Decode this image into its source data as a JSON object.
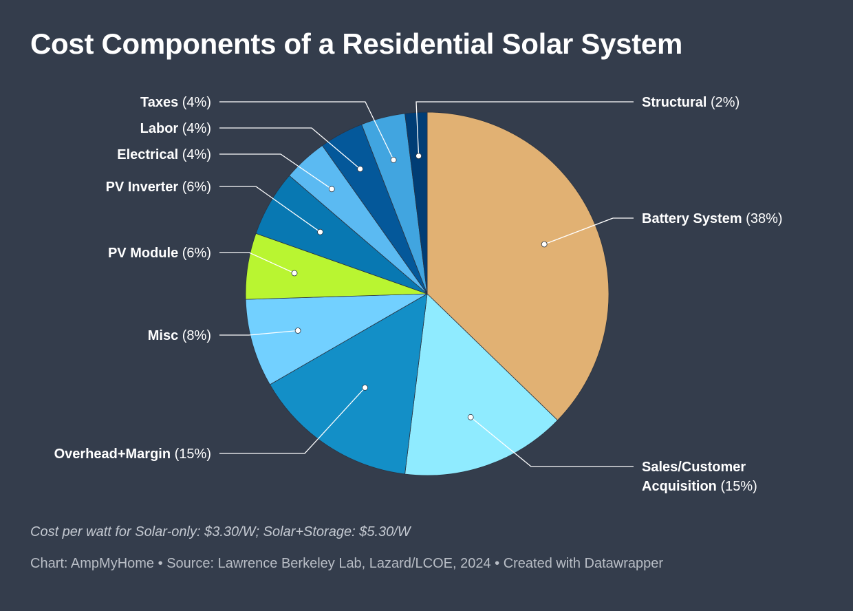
{
  "title": "Cost Components of a Residential Solar System",
  "note": "Cost per watt for Solar-only: $3.30/W; Solar+Storage: $5.30/W",
  "footer": {
    "chart": "Chart: AmpMyHome",
    "sep1": " • ",
    "source": "Source: Lawrence Berkeley Lab, Lazard/LCOE, 2024",
    "sep2": " • ",
    "created": "Created with Datawrapper"
  },
  "chart_data": {
    "type": "pie",
    "categories": [
      "Battery System",
      "Sales/Customer Acquisition",
      "Overhead+Margin",
      "Misc",
      "PV Module",
      "PV Inverter",
      "Electrical",
      "Labor",
      "Taxes",
      "Structural"
    ],
    "label_lines": [
      [
        "Battery System"
      ],
      [
        "Sales/Customer",
        "Acquisition"
      ],
      [
        "Overhead+Margin"
      ],
      [
        "Misc"
      ],
      [
        "PV Module"
      ],
      [
        "PV Inverter"
      ],
      [
        "Electrical"
      ],
      [
        "Labor"
      ],
      [
        "Taxes"
      ],
      [
        "Structural"
      ]
    ],
    "value_labels": [
      "(38%)",
      "(15%)",
      "(15%)",
      "(8%)",
      "(6%)",
      "(6%)",
      "(4%)",
      "(4%)",
      "(4%)",
      "(2%)"
    ],
    "values": [
      38,
      15,
      15,
      8,
      6,
      6,
      4,
      4,
      4,
      2
    ],
    "colors": [
      "#e1b173",
      "#8febff",
      "#138fc7",
      "#72d0ff",
      "#b9f531",
      "#0878b2",
      "#5bbaf2",
      "#04589a",
      "#41a5e0",
      "#003d75"
    ],
    "start_angle_deg": 0,
    "direction": "clockwise",
    "label_sides": [
      "right",
      "right",
      "left",
      "left",
      "left",
      "left",
      "left",
      "left",
      "left",
      "right"
    ]
  }
}
